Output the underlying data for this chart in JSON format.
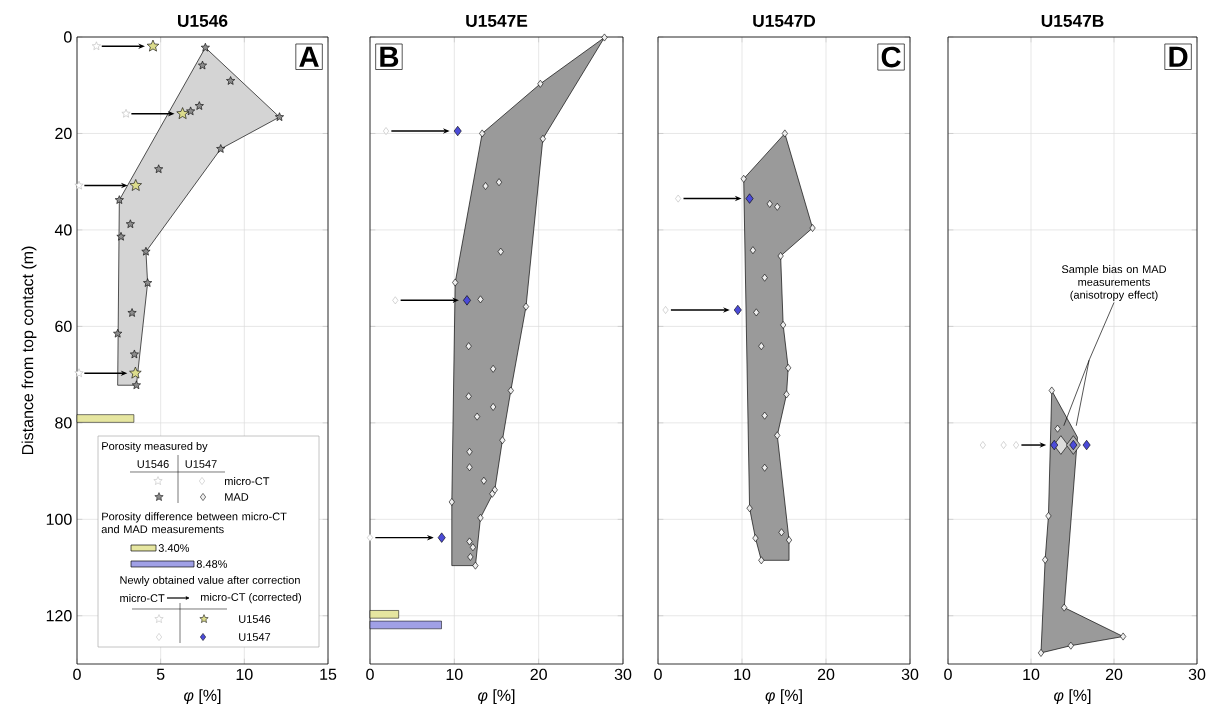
{
  "chart_data": [
    {
      "type": "scatter",
      "title": "U1546",
      "xlabel": "*φ* [%]",
      "ylabel": "Distance from top contact (m)",
      "xlim": [
        0,
        15
      ],
      "xticks": [
        0,
        5,
        10,
        15
      ],
      "ylim": [
        130,
        0
      ],
      "yticks": [
        0,
        20,
        40,
        60,
        80,
        100,
        120
      ],
      "grid": true,
      "annotations": [
        "A",
        "Porosity measured by",
        "U1546",
        "U1547",
        "micro-CT",
        "MAD",
        "Porosity difference between micro-CT and MAD measurements",
        "3.40%",
        "8.48%",
        "Newly obtained value after correction",
        "micro-CT",
        "micro-CT (corrected)",
        "U1546",
        "U1547"
      ],
      "series": [
        {
          "type": "area",
          "color": "#d4d4d4",
          "x": [
            7.67,
            12.1,
            8.59,
            4.12,
            4.22,
            3.55,
            2.43,
            2.53
          ],
          "values": [
            2.2,
            16.6,
            23.2,
            44.5,
            51.0,
            72.2,
            72.2,
            33.8
          ]
        },
        {
          "marker": "star",
          "color": "#8c8c8c",
          "x": [
            7.67,
            7.5,
            9.18,
            7.31,
            6.79,
            12.1,
            8.59,
            4.88,
            2.53,
            3.19,
            2.63,
            4.12,
            4.22,
            3.29,
            2.43,
            3.43,
            3.55
          ],
          "values": [
            2.2,
            5.9,
            9.1,
            14.3,
            15.4,
            16.6,
            23.2,
            27.4,
            33.8,
            38.8,
            41.4,
            44.5,
            51.0,
            57.2,
            61.5,
            65.8,
            72.2
          ]
        },
        {
          "marker": "star",
          "color": "#ffffff",
          "x": [
            1.16,
            2.93,
            0.12,
            0.12
          ],
          "values": [
            1.9,
            15.9,
            30.8,
            69.7
          ]
        },
        {
          "marker": "star",
          "color": "#dcdc8c",
          "x": [
            4.54,
            6.31,
            3.51,
            3.49
          ],
          "values": [
            1.9,
            15.9,
            30.8,
            69.7
          ]
        }
      ]
    },
    {
      "type": "bar",
      "orientation": "horizontal",
      "xlim": [
        0,
        15
      ],
      "ylim": [
        130,
        0
      ],
      "tick_labels": false,
      "series": [
        {
          "color": "#e6e6a0",
          "x": [
            79.1
          ],
          "values": [
            3.4
          ]
        }
      ]
    },
    {
      "type": "bar",
      "orientation": "horizontal",
      "xlim": [
        0,
        30
      ],
      "ylim": [
        130,
        0
      ],
      "tick_labels": false,
      "series": [
        {
          "color": "#e6e6a0",
          "x": [
            119.7
          ],
          "values": [
            3.4
          ]
        },
        {
          "color": "#a0a0e6",
          "x": [
            121.9
          ],
          "values": [
            8.48
          ]
        }
      ]
    },
    {
      "type": "scatter",
      "title": "U1547E",
      "xlabel": "*φ* [%]",
      "xlim": [
        0,
        30
      ],
      "xticks": [
        0,
        10,
        20,
        30
      ],
      "ylim": [
        130,
        0
      ],
      "yticks": [
        0,
        20,
        40,
        60,
        80,
        100,
        120
      ],
      "grid": true,
      "tick_labels": "x",
      "annotations": [
        "B"
      ],
      "series": [
        {
          "type": "area",
          "color": "#9a9a9a",
          "x": [
            27.8,
            20.5,
            18.5,
            16.7,
            15.7,
            14.8,
            13.1,
            12.5,
            9.7,
            9.7,
            10.1,
            13.3,
            20.2
          ],
          "values": [
            0.1,
            21.1,
            55.9,
            73.3,
            83.6,
            93.9,
            99.7,
            109.6,
            109.6,
            96.4,
            50.9,
            20.0,
            9.7
          ]
        },
        {
          "marker": "diamond",
          "color": "#eeeeee",
          "x": [
            27.8,
            20.2,
            13.3,
            20.5,
            13.7,
            15.3,
            15.5,
            10.1,
            13.1,
            18.5,
            11.7,
            14.6,
            16.7,
            11.7,
            14.6,
            12.7,
            15.7,
            11.8,
            11.8,
            13.5,
            14.8,
            14.5,
            9.7,
            13.1,
            11.8,
            12.2,
            11.9,
            12.5
          ],
          "values": [
            0.1,
            9.7,
            20.0,
            21.1,
            30.9,
            30.1,
            44.5,
            50.9,
            54.4,
            55.9,
            64.1,
            68.8,
            73.3,
            74.5,
            76.7,
            78.7,
            83.6,
            86.0,
            89.2,
            92.0,
            93.9,
            94.7,
            96.4,
            99.7,
            104.6,
            105.8,
            107.8,
            109.6
          ]
        },
        {
          "marker": "diamond",
          "color": "#ffffff",
          "x": [
            1.9,
            3.0,
            0.0
          ],
          "values": [
            19.5,
            54.6,
            103.8
          ]
        },
        {
          "marker": "diamond",
          "color": "#4b4bd7",
          "x": [
            10.4,
            11.5,
            8.5
          ],
          "values": [
            19.5,
            54.6,
            103.8
          ]
        }
      ]
    },
    {
      "type": "scatter",
      "title": "U1547D",
      "xlabel": "*φ* [%]",
      "xlim": [
        0,
        30
      ],
      "xticks": [
        0,
        10,
        20,
        30
      ],
      "ylim": [
        130,
        0
      ],
      "yticks": [
        0,
        20,
        40,
        60,
        80,
        100,
        120
      ],
      "grid": true,
      "tick_labels": "x",
      "annotations": [
        "C"
      ],
      "series": [
        {
          "type": "area",
          "color": "#9a9a9a",
          "x": [
            15.1,
            18.4,
            14.6,
            14.9,
            15.5,
            15.3,
            14.2,
            15.6,
            15.6,
            12.3,
            11.6,
            10.9,
            10.2
          ],
          "values": [
            20.0,
            39.6,
            45.4,
            59.7,
            68.6,
            74.1,
            82.6,
            104.3,
            108.5,
            108.5,
            103.9,
            97.7,
            29.4
          ]
        },
        {
          "marker": "diamond",
          "color": "#eeeeee",
          "x": [
            15.1,
            10.2,
            13.3,
            14.2,
            18.4,
            11.3,
            14.6,
            12.7,
            11.7,
            14.9,
            12.3,
            15.5,
            15.3,
            12.7,
            14.2,
            12.7,
            10.9,
            14.7,
            15.6,
            11.6,
            12.3
          ],
          "values": [
            20.0,
            29.4,
            34.6,
            35.2,
            39.6,
            44.2,
            45.4,
            49.9,
            57.1,
            59.7,
            64.1,
            68.6,
            74.1,
            78.5,
            82.6,
            89.3,
            97.7,
            102.7,
            104.3,
            103.9,
            108.5
          ]
        },
        {
          "marker": "diamond",
          "color": "#ffffff",
          "x": [
            2.4,
            0.9
          ],
          "values": [
            33.5,
            56.6
          ]
        },
        {
          "marker": "diamond",
          "color": "#4b4bd7",
          "x": [
            10.9,
            9.5
          ],
          "values": [
            33.5,
            56.6
          ]
        }
      ]
    },
    {
      "type": "scatter",
      "title": "U1547B",
      "xlabel": "*φ* [%]",
      "xlim": [
        0,
        30
      ],
      "xticks": [
        0,
        10,
        20,
        30
      ],
      "ylim": [
        130,
        0
      ],
      "yticks": [
        0,
        20,
        40,
        60,
        80,
        100,
        120
      ],
      "grid": true,
      "tick_labels": "x",
      "annotations": [
        "D",
        "Sample bias on MAD measurements (anisotropy effect)"
      ],
      "series": [
        {
          "type": "area",
          "color": "#9a9a9a",
          "x": [
            12.5,
            15.6,
            14.0,
            21.1,
            14.8,
            11.2,
            11.7,
            12.1
          ],
          "values": [
            73.3,
            83.0,
            118.3,
            124.3,
            126.2,
            127.7,
            108.4,
            99.3
          ]
        },
        {
          "marker": "diamond",
          "color": "#eeeeee",
          "x": [
            12.5,
            13.2,
            12.1,
            11.7,
            14.0,
            21.1,
            14.8,
            11.2
          ],
          "values": [
            73.3,
            81.2,
            99.3,
            108.4,
            118.3,
            124.3,
            126.2,
            127.7
          ]
        },
        {
          "marker": "diamond",
          "colors": [
            "#dcdcdc",
            "#b4b4b4"
          ],
          "x": [
            13.6,
            15.1
          ],
          "values": [
            84.6,
            84.6
          ]
        },
        {
          "marker": "diamond",
          "color": "#ffffff",
          "x": [
            4.2,
            6.7,
            8.2
          ],
          "values": [
            84.6,
            84.6,
            84.6
          ]
        },
        {
          "marker": "diamond",
          "color": "#4b4bd7",
          "x": [
            12.8,
            15.1,
            16.7
          ],
          "values": [
            84.6,
            84.6,
            84.6
          ]
        }
      ]
    }
  ]
}
